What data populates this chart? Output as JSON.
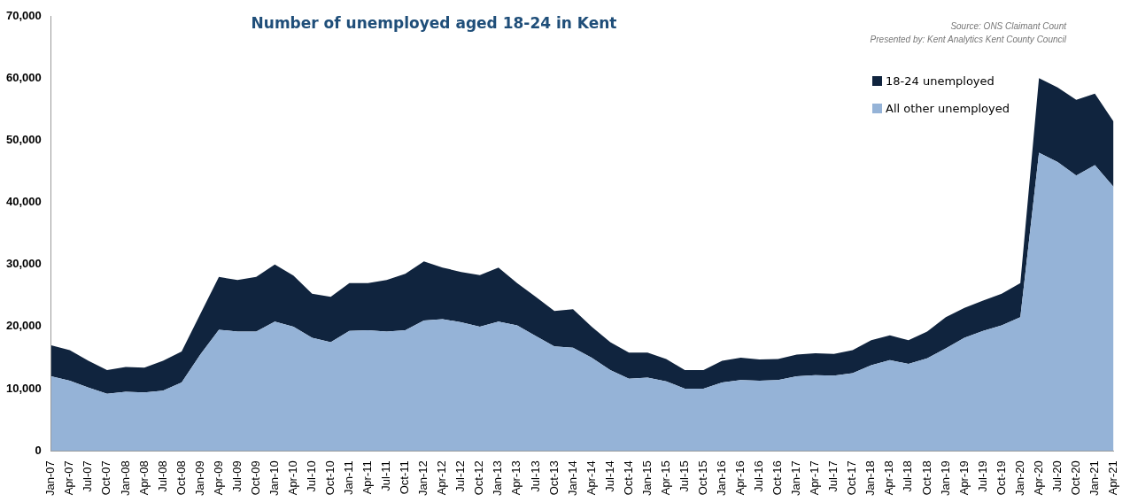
{
  "chart_data": {
    "type": "area",
    "title": "Number of unemployed aged 18-24 in Kent",
    "annotations": [
      "Source: ONS Claimant Count",
      "Presented by: Kent Analytics  Kent County Council"
    ],
    "categories": [
      "Jan-07",
      "Apr-07",
      "Jul-07",
      "Oct-07",
      "Jan-08",
      "Apr-08",
      "Jul-08",
      "Oct-08",
      "Jan-09",
      "Apr-09",
      "Jul-09",
      "Oct-09",
      "Jan-10",
      "Apr-10",
      "Jul-10",
      "Oct-10",
      "Jan-11",
      "Apr-11",
      "Jul-11",
      "Oct-11",
      "Jan-12",
      "Apr-12",
      "Jul-12",
      "Oct-12",
      "Jan-13",
      "Apr-13",
      "Jul-13",
      "Oct-13",
      "Jan-14",
      "Apr-14",
      "Jul-14",
      "Oct-14",
      "Jan-15",
      "Apr-15",
      "Jul-15",
      "Oct-15",
      "Jan-16",
      "Apr-16",
      "Jul-16",
      "Oct-16",
      "Jan-17",
      "Apr-17",
      "Jul-17",
      "Oct-17",
      "Jan-18",
      "Apr-18",
      "Jul-18",
      "Oct-18",
      "Jan-19",
      "Apr-19",
      "Jul-19",
      "Oct-19",
      "Jan-20",
      "Apr-20",
      "Jul-20",
      "Oct-20",
      "Jan-21",
      "Apr-21"
    ],
    "stacked": true,
    "series": [
      {
        "name": "All other unemployed",
        "color": "#95b3d7",
        "values": [
          12000,
          11300,
          10200,
          9200,
          9500,
          9400,
          9700,
          11000,
          15500,
          19500,
          19200,
          19200,
          20800,
          20000,
          18200,
          17500,
          19300,
          19400,
          19200,
          19400,
          21000,
          21200,
          20700,
          20000,
          20800,
          20200,
          18500,
          16800,
          16600,
          15000,
          13000,
          11600,
          11800,
          11200,
          10000,
          10000,
          11000,
          11400,
          11300,
          11400,
          12000,
          12200,
          12100,
          12500,
          13800,
          14600,
          14000,
          14900,
          16500,
          18200,
          19300,
          20200,
          21500,
          48000,
          46500,
          44300,
          46000,
          42500
        ]
      },
      {
        "name": "18-24 unemployed",
        "color": "#10243e",
        "values": [
          5000,
          4900,
          4300,
          3800,
          4000,
          4000,
          4800,
          5000,
          6500,
          8500,
          8300,
          8800,
          9200,
          8200,
          7100,
          7300,
          7700,
          7600,
          8300,
          9100,
          9500,
          8300,
          8100,
          8300,
          8700,
          6800,
          6300,
          5700,
          6200,
          5000,
          4500,
          4200,
          4000,
          3600,
          3000,
          3000,
          3500,
          3600,
          3400,
          3400,
          3500,
          3500,
          3500,
          3700,
          4000,
          4000,
          3800,
          4300,
          5000,
          4800,
          4900,
          5100,
          5500,
          12000,
          12000,
          12200,
          11500,
          10500
        ]
      }
    ],
    "ylim": [
      0,
      70000
    ],
    "yticks": [
      {
        "value": 0,
        "label": "0"
      },
      {
        "value": 10000,
        "label": "10,000"
      },
      {
        "value": 20000,
        "label": "20,000"
      },
      {
        "value": 30000,
        "label": "30,000"
      },
      {
        "value": 40000,
        "label": "40,000"
      },
      {
        "value": 50000,
        "label": "50,000"
      },
      {
        "value": 60000,
        "label": "60,000"
      },
      {
        "value": 70000,
        "label": "70,000"
      }
    ],
    "grid": false,
    "legend": "top right"
  }
}
